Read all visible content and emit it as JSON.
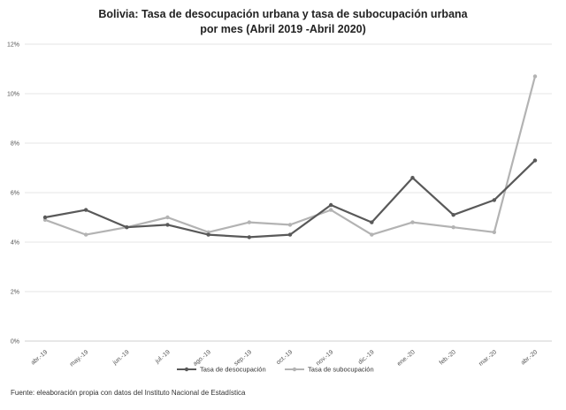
{
  "title_line1": "Bolivia: Tasa de desocupación urbana y tasa de subocupación urbana",
  "title_line2": "por mes (Abril 2019 -Abril 2020)",
  "footer": "Fuente:  eleaboración propia con datos del Instituto Nacional de Estadística",
  "chart_data": {
    "type": "line",
    "title": "Bolivia: Tasa de desocupación urbana y tasa de subocupación urbana por mes (Abril 2019 -Abril 2020)",
    "xlabel": "",
    "ylabel": "",
    "ylim": [
      0,
      12
    ],
    "yticks": [
      "0%",
      "2%",
      "4%",
      "6%",
      "8%",
      "10%",
      "12%"
    ],
    "grid": true,
    "legend_position": "bottom",
    "categories": [
      "abr.-19",
      "may.-19",
      "jun.-19",
      "jul.-19",
      "ago.-19",
      "sep.-19",
      "oct.-19",
      "nov.-19",
      "dic.-19",
      "ene.-20",
      "feb.-20",
      "mar.-20",
      "abr.-20"
    ],
    "series": [
      {
        "name": "Tasa de desocupación",
        "color": "#595959",
        "values": [
          5.0,
          5.3,
          4.6,
          4.7,
          4.3,
          4.2,
          4.3,
          5.5,
          4.8,
          6.6,
          5.1,
          5.7,
          7.3
        ]
      },
      {
        "name": "Tasa de subocupación",
        "color": "#b3b3b3",
        "values": [
          4.9,
          4.3,
          4.6,
          5.0,
          4.4,
          4.8,
          4.7,
          5.3,
          4.3,
          4.8,
          4.6,
          4.4,
          10.7
        ]
      }
    ]
  }
}
